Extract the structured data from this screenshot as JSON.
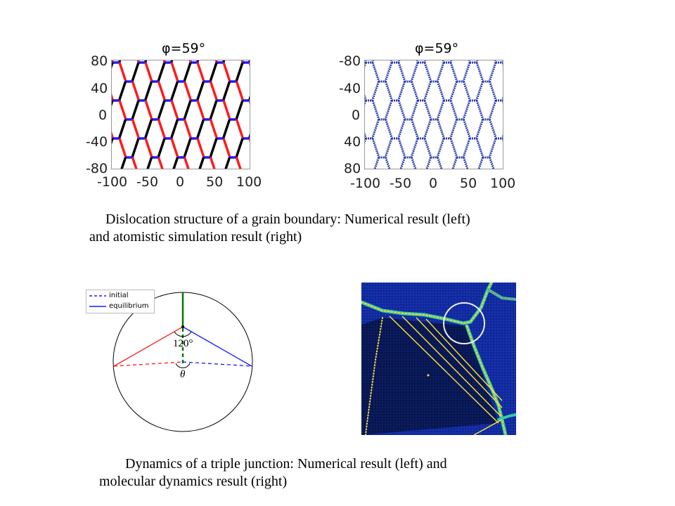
{
  "figure1": {
    "left_plot": {
      "title": "φ=59°",
      "y_ticks": [
        "80",
        "40",
        "0",
        "-40",
        "-80"
      ],
      "x_ticks": [
        "-100",
        "-50",
        "0",
        "50",
        "100"
      ],
      "colors": {
        "segment_a": "#000000",
        "segment_b": "#ff1a1a",
        "segment_c": "#1a1aff"
      }
    },
    "right_plot": {
      "title": "φ=59°",
      "y_ticks": [
        "-80",
        "-40",
        "0",
        "40",
        "80"
      ],
      "x_ticks": [
        "-100",
        "-50",
        "0",
        "50",
        "100"
      ],
      "colors": {
        "network": "#2b3fb0"
      }
    },
    "caption_line1": "Dislocation structure of a grain boundary: Numerical result (left)",
    "caption_line2": "and atomistic simulation result (right)"
  },
  "figure2": {
    "left_diagram": {
      "legend": [
        {
          "label": "initial",
          "style": "dashed",
          "color": "#1a1aff"
        },
        {
          "label": "equilibrium",
          "style": "solid",
          "color": "#1a1aff"
        }
      ],
      "angle_label": "120°",
      "theta_label": "θ"
    },
    "right_image": {
      "colors": {
        "background": "#1230a0",
        "grain": "#0a1a5c",
        "boundary": "#ffee33"
      }
    },
    "caption_line1": "Dynamics of a triple junction: Numerical result (left) and",
    "caption_line2": "molecular dynamics result (right)"
  }
}
